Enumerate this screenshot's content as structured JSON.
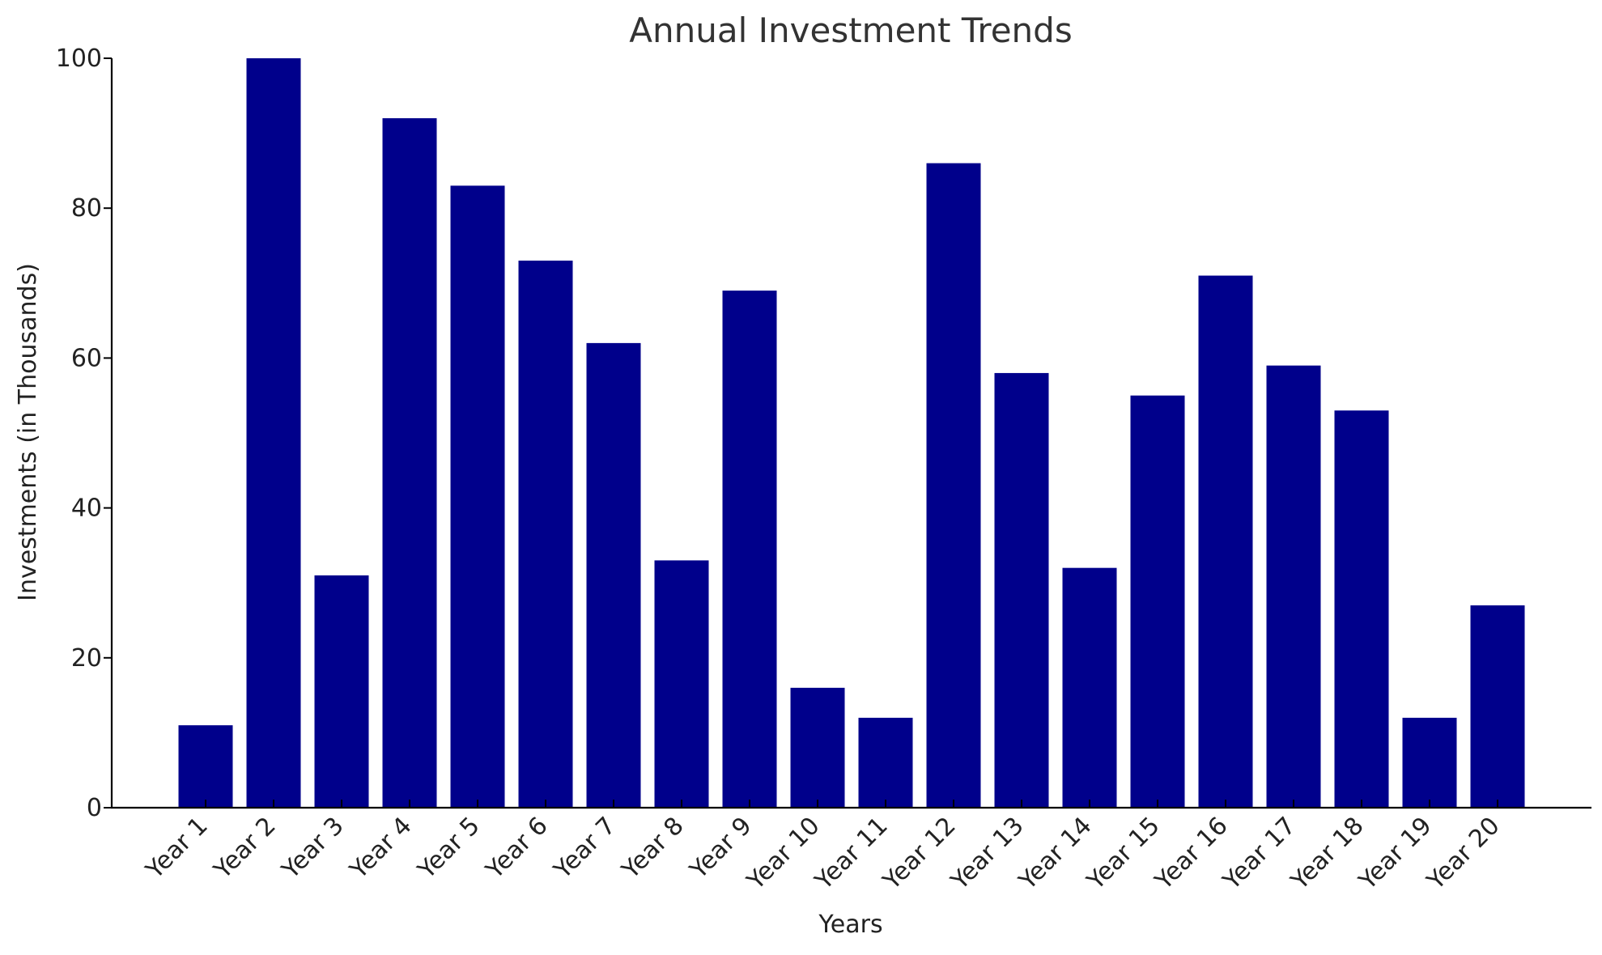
{
  "chart_data": {
    "type": "bar",
    "title": "Annual Investment Trends",
    "xlabel": "Years",
    "ylabel": "Investments (in Thousands)",
    "categories": [
      "Year 1",
      "Year 2",
      "Year 3",
      "Year 4",
      "Year 5",
      "Year 6",
      "Year 7",
      "Year 8",
      "Year 9",
      "Year 10",
      "Year 11",
      "Year 12",
      "Year 13",
      "Year 14",
      "Year 15",
      "Year 16",
      "Year 17",
      "Year 18",
      "Year 19",
      "Year 20"
    ],
    "values": [
      11,
      100,
      31,
      92,
      83,
      73,
      62,
      33,
      69,
      16,
      12,
      86,
      58,
      32,
      55,
      71,
      59,
      53,
      12,
      27
    ],
    "ylim": [
      0,
      100
    ],
    "yticks": [
      0,
      20,
      40,
      60,
      80,
      100
    ],
    "bar_color": "#00008b",
    "grid": false,
    "legend": "none"
  }
}
